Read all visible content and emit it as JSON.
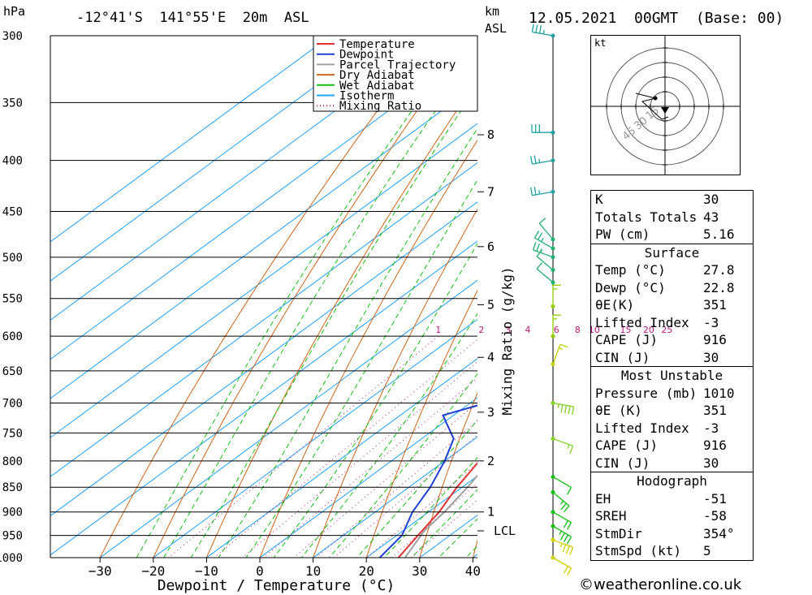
{
  "header": {
    "hpa": "hPa",
    "location": "-12°41'S  141°55'E  20m  ASL",
    "km": "km",
    "asl": "ASL",
    "datetime": "12.05.2021  00GMT  (Base: 00)"
  },
  "chart_data": {
    "type": "line",
    "pressure_levels": [
      300,
      350,
      400,
      450,
      500,
      550,
      600,
      650,
      700,
      750,
      800,
      850,
      900,
      950,
      1000
    ],
    "x_ticks": [
      -30,
      -20,
      -10,
      0,
      10,
      20,
      30,
      40
    ],
    "xlabel": "Dewpoint / Temperature (°C)",
    "ylabel_right": "Mixing Ratio (g/kg)",
    "km_labels": [
      {
        "km": "8",
        "p": 377
      },
      {
        "km": "7",
        "p": 430
      },
      {
        "km": "6",
        "p": 488
      },
      {
        "km": "5",
        "p": 558
      },
      {
        "km": "4",
        "p": 630
      },
      {
        "km": "3",
        "p": 715
      },
      {
        "km": "2",
        "p": 800
      },
      {
        "km": "1",
        "p": 900
      },
      {
        "km": "LCL",
        "p": 940
      }
    ],
    "mixing_ratios": [
      "1",
      "2",
      "3",
      "4",
      "6",
      "8",
      "10",
      "15",
      "20",
      "25"
    ],
    "legend": [
      "Temperature",
      "Dewpoint",
      "Parcel Trajectory",
      "Dry Adiabat",
      "Wet Adiabat",
      "Isotherm",
      "Mixing Ratio"
    ],
    "series": [
      {
        "name": "Temperature",
        "color": "#e03030",
        "points": [
          [
            1010,
            27.8
          ],
          [
            1000,
            26
          ],
          [
            950,
            24
          ],
          [
            900,
            22
          ],
          [
            850,
            19
          ],
          [
            800,
            16.5
          ],
          [
            750,
            16
          ],
          [
            700,
            13
          ],
          [
            650,
            10
          ],
          [
            600,
            7
          ],
          [
            550,
            3
          ],
          [
            500,
            -3
          ],
          [
            480,
            -5
          ],
          [
            450,
            -10
          ],
          [
            400,
            -18
          ],
          [
            390,
            -14
          ],
          [
            375,
            -11
          ],
          [
            370,
            -13
          ]
        ]
      },
      {
        "name": "Dewpoint",
        "color": "#1e3ed8",
        "points": [
          [
            1010,
            22.8
          ],
          [
            1000,
            22.5
          ],
          [
            950,
            21
          ],
          [
            900,
            17
          ],
          [
            850,
            14
          ],
          [
            800,
            10
          ],
          [
            760,
            6
          ],
          [
            720,
            -2
          ],
          [
            700,
            3
          ],
          [
            650,
            7
          ],
          [
            600,
            3
          ],
          [
            550,
            1
          ],
          [
            530,
            -2
          ],
          [
            525,
            -16
          ],
          [
            510,
            0
          ],
          [
            505,
            -12
          ],
          [
            495,
            -11
          ],
          [
            485,
            -12
          ],
          [
            475,
            1
          ],
          [
            450,
            0
          ],
          [
            400,
            -18
          ],
          [
            390,
            -25
          ],
          [
            375,
            -42
          ],
          [
            365,
            -46
          ],
          [
            350,
            -45
          ],
          [
            300,
            -43
          ]
        ]
      },
      {
        "name": "Parcel Trajectory",
        "color": "#a0a0a0",
        "points": [
          [
            1010,
            27.8
          ],
          [
            940,
            24
          ],
          [
            900,
            23
          ],
          [
            850,
            21
          ],
          [
            800,
            18.5
          ],
          [
            750,
            16
          ],
          [
            700,
            13
          ],
          [
            650,
            9.5
          ],
          [
            600,
            6
          ],
          [
            550,
            1.5
          ],
          [
            500,
            -3.5
          ],
          [
            450,
            -9
          ],
          [
            400,
            -17
          ],
          [
            370,
            -23
          ]
        ]
      }
    ],
    "wind_barbs": [
      {
        "p": 300,
        "dir": 100,
        "spd": 25
      },
      {
        "p": 375,
        "dir": 90,
        "spd": 30
      },
      {
        "p": 400,
        "dir": 80,
        "spd": 15
      },
      {
        "p": 430,
        "dir": 80,
        "spd": 15
      },
      {
        "p": 480,
        "dir": 140,
        "spd": 10
      },
      {
        "p": 490,
        "dir": 120,
        "spd": 15
      },
      {
        "p": 500,
        "dir": 110,
        "spd": 15
      },
      {
        "p": 515,
        "dir": 130,
        "spd": 10
      },
      {
        "p": 530,
        "dir": 130,
        "spd": 10
      },
      {
        "p": 560,
        "dir": 180,
        "spd": 5
      },
      {
        "p": 600,
        "dir": 180,
        "spd": 5
      },
      {
        "p": 640,
        "dir": 200,
        "spd": 5
      },
      {
        "p": 700,
        "dir": 280,
        "spd": 35
      },
      {
        "p": 760,
        "dir": 290,
        "spd": 5
      },
      {
        "p": 830,
        "dir": 300,
        "spd": 10
      },
      {
        "p": 860,
        "dir": 310,
        "spd": 15
      },
      {
        "p": 900,
        "dir": 300,
        "spd": 20
      },
      {
        "p": 930,
        "dir": 300,
        "spd": 25
      },
      {
        "p": 960,
        "dir": 290,
        "spd": 25
      },
      {
        "p": 1000,
        "dir": 300,
        "spd": 20
      }
    ]
  },
  "hodograph": {
    "unit": "kt",
    "ring_labels": [
      "15",
      "30",
      "45"
    ]
  },
  "indices": {
    "top": [
      {
        "label": "K",
        "value": "30"
      },
      {
        "label": "Totals Totals",
        "value": "43"
      },
      {
        "label": "PW (cm)",
        "value": "5.16"
      }
    ],
    "surface_title": "Surface",
    "surface": [
      {
        "label": "Temp (°C)",
        "value": "27.8"
      },
      {
        "label": "Dewp (°C)",
        "value": "22.8"
      },
      {
        "label": "θE(K)",
        "value": "351"
      },
      {
        "label": "Lifted Index",
        "value": "-3"
      },
      {
        "label": "CAPE (J)",
        "value": "916"
      },
      {
        "label": "CIN (J)",
        "value": "30"
      }
    ],
    "mu_title": "Most Unstable",
    "mu": [
      {
        "label": "Pressure (mb)",
        "value": "1010"
      },
      {
        "label": "θE (K)",
        "value": "351"
      },
      {
        "label": "Lifted Index",
        "value": "-3"
      },
      {
        "label": "CAPE (J)",
        "value": "916"
      },
      {
        "label": "CIN (J)",
        "value": "30"
      }
    ],
    "hodo_title": "Hodograph",
    "hodo": [
      {
        "label": "EH",
        "value": "-51"
      },
      {
        "label": "SREH",
        "value": "-58"
      },
      {
        "label": "StmDir",
        "value": "354°"
      },
      {
        "label": "StmSpd (kt)",
        "value": "5"
      }
    ]
  },
  "footer": "©weatheronline.co.uk"
}
